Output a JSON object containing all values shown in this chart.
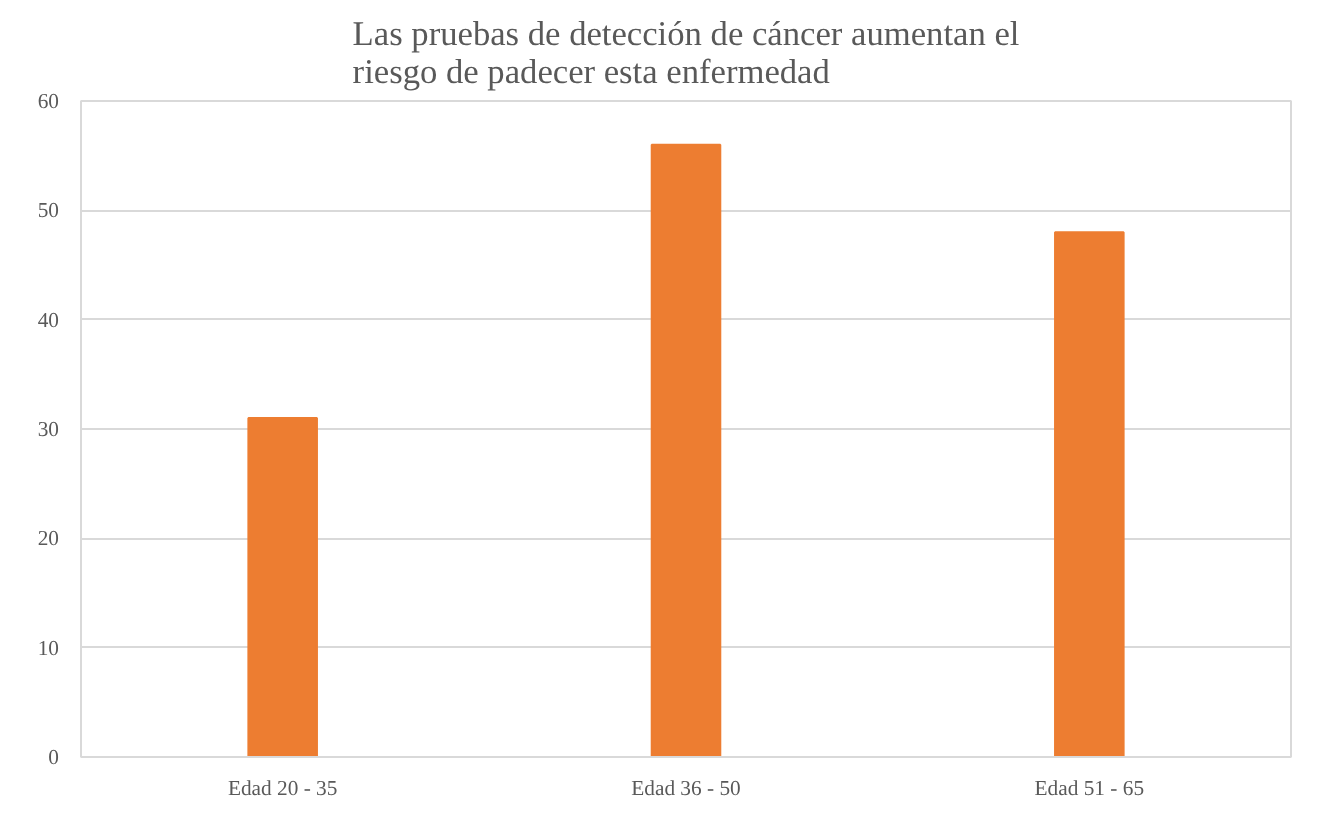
{
  "chart_data": {
    "type": "bar",
    "title": "Las pruebas de detección de cáncer aumentan el\nriesgo de padecer esta enfermedad",
    "categories": [
      "Edad 20 - 35",
      "Edad 36 - 50",
      "Edad 51 - 65"
    ],
    "values": [
      31,
      56,
      48
    ],
    "color": "#ed7d31",
    "ylim": [
      0,
      60
    ],
    "yticks": [
      0,
      10,
      20,
      30,
      40,
      50,
      60
    ],
    "grid": "y"
  }
}
